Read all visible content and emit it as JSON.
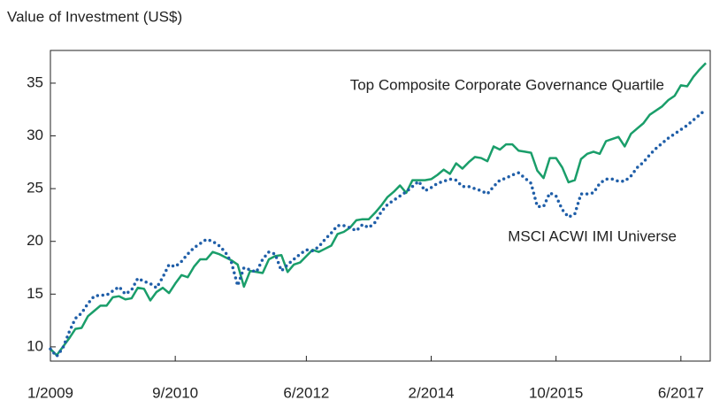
{
  "chart_data": {
    "type": "line",
    "y_axis_label": "Value of Investment (US$)",
    "annotations": [
      "Top Composite Corporate Governance Quartile",
      "MSCI ACWI IMI Universe"
    ],
    "categories": [
      "1/2009",
      null,
      null,
      null,
      null,
      null,
      null,
      null,
      null,
      null,
      null,
      null,
      null,
      null,
      null,
      null,
      null,
      null,
      null,
      null,
      "9/2010",
      null,
      null,
      null,
      null,
      null,
      null,
      null,
      null,
      null,
      null,
      null,
      null,
      null,
      null,
      null,
      null,
      null,
      null,
      null,
      null,
      "6/2012",
      null,
      null,
      null,
      null,
      null,
      null,
      null,
      null,
      null,
      null,
      null,
      null,
      null,
      null,
      null,
      null,
      null,
      null,
      null,
      "2/2014",
      null,
      null,
      null,
      null,
      null,
      null,
      null,
      null,
      null,
      null,
      null,
      null,
      null,
      null,
      null,
      null,
      null,
      null,
      null,
      "10/2015",
      null,
      null,
      null,
      null,
      null,
      null,
      null,
      null,
      null,
      null,
      null,
      null,
      null,
      null,
      null,
      null,
      null,
      null,
      null,
      "6/2017",
      null,
      null,
      null,
      null
    ],
    "series": [
      {
        "name": "Top Composite Corporate Governance Quartile",
        "color": "#1a9e6a",
        "style": "solid",
        "values": [
          9.8,
          9.2,
          10.0,
          10.8,
          11.7,
          11.8,
          12.9,
          13.4,
          13.9,
          13.9,
          14.7,
          14.8,
          14.5,
          14.6,
          15.6,
          15.5,
          14.4,
          15.2,
          15.6,
          15.1,
          16.0,
          16.8,
          16.6,
          17.6,
          18.3,
          18.3,
          19.0,
          18.8,
          18.5,
          18.2,
          17.8,
          15.7,
          17.2,
          17.1,
          17.0,
          18.3,
          18.6,
          18.7,
          17.1,
          17.8,
          18.0,
          18.6,
          19.2,
          19.0,
          19.3,
          19.6,
          20.7,
          20.9,
          21.3,
          22.0,
          22.1,
          22.1,
          22.7,
          23.4,
          24.2,
          24.7,
          25.3,
          24.6,
          25.8,
          25.8,
          25.8,
          25.9,
          26.3,
          26.8,
          26.4,
          27.4,
          26.9,
          27.5,
          28.0,
          27.9,
          27.6,
          29.0,
          28.7,
          29.2,
          29.2,
          28.6,
          28.5,
          28.4,
          26.7,
          26.0,
          27.9,
          27.9,
          27.0,
          25.6,
          25.8,
          27.8,
          28.3,
          28.5,
          28.3,
          29.5,
          29.7,
          29.9,
          29.0,
          30.2,
          30.7,
          31.2,
          32.0,
          32.4,
          32.8,
          33.4,
          33.8,
          34.8,
          34.7,
          35.6,
          36.3,
          36.9
        ]
      },
      {
        "name": "MSCI ACWI IMI Universe",
        "color": "#1f5ea8",
        "style": "dotted",
        "values": [
          9.8,
          9.1,
          9.9,
          11.4,
          12.7,
          13.2,
          14.1,
          14.8,
          14.9,
          14.9,
          15.3,
          15.7,
          15.0,
          15.4,
          16.5,
          16.2,
          16.0,
          15.6,
          16.6,
          17.8,
          17.6,
          18.1,
          18.8,
          19.4,
          19.8,
          20.2,
          20.0,
          19.6,
          19.0,
          18.0,
          15.8,
          17.5,
          17.3,
          17.1,
          18.3,
          19.0,
          18.8,
          17.2,
          17.8,
          18.3,
          18.8,
          19.2,
          19.1,
          19.5,
          20.2,
          20.8,
          21.5,
          21.5,
          21.3,
          21.0,
          21.6,
          21.3,
          21.8,
          22.8,
          23.5,
          23.9,
          24.3,
          24.7,
          25.2,
          25.7,
          24.8,
          25.1,
          25.5,
          25.7,
          25.9,
          25.8,
          25.2,
          25.2,
          25.0,
          24.8,
          24.5,
          25.2,
          25.8,
          26.0,
          26.3,
          26.5,
          26.0,
          25.5,
          23.3,
          23.3,
          24.6,
          24.3,
          23.0,
          22.3,
          22.6,
          24.5,
          24.5,
          24.6,
          25.5,
          25.9,
          25.9,
          25.7,
          25.7,
          26.2,
          27.0,
          27.5,
          28.2,
          28.8,
          29.3,
          29.8,
          30.2,
          30.6,
          31.0,
          31.5,
          32.0,
          32.5
        ]
      }
    ],
    "ylim": [
      8.65,
      38.1
    ],
    "yticks": [
      10,
      15,
      20,
      25,
      30,
      35
    ],
    "grid": false
  }
}
